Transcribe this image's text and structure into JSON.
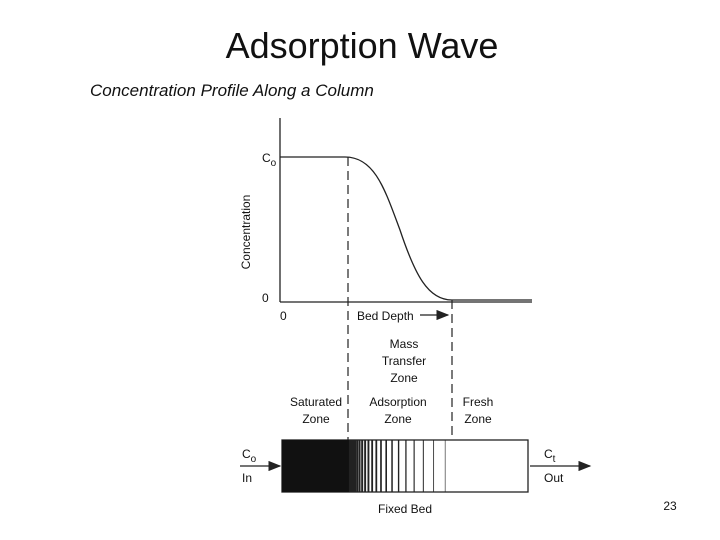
{
  "title": "Adsorption Wave",
  "figure": {
    "caption": "Concentration Profile Along a Column",
    "y_axis": {
      "label": "Concentration",
      "top": {
        "main": "C",
        "sub": "o"
      },
      "bottom": "0"
    },
    "x_axis": {
      "origin": "0",
      "label": "Bed Depth"
    },
    "mtz_label": [
      "Mass",
      "Transfer",
      "Zone"
    ],
    "zones": [
      {
        "lines": [
          "Saturated",
          "Zone"
        ]
      },
      {
        "lines": [
          "Adsorption",
          "Zone"
        ]
      },
      {
        "lines": [
          "Fresh",
          "Zone"
        ]
      }
    ],
    "inlet": {
      "main": "C",
      "sub": "o",
      "label": "In"
    },
    "outlet": {
      "main": "C",
      "sub": "t",
      "label": "Out"
    },
    "bed_label": "Fixed Bed"
  },
  "page_number": "23"
}
